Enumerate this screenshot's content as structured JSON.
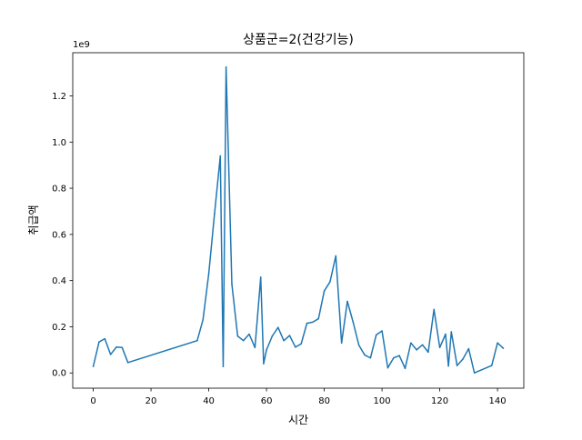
{
  "chart_data": {
    "type": "line",
    "title": "상품군=2(건강기능)",
    "xlabel": "시간",
    "ylabel": "취급액",
    "y_offset_label": "1e9",
    "xlim": [
      -7.1,
      149.1
    ],
    "ylim": [
      -0.066,
      1.387
    ],
    "xticks": [
      0,
      20,
      40,
      60,
      80,
      100,
      120,
      140
    ],
    "yticks": [
      0.0,
      0.2,
      0.4,
      0.6,
      0.8,
      1.0,
      1.2
    ],
    "ytick_labels": [
      "0.0",
      "0.2",
      "0.4",
      "0.6",
      "0.8",
      "1.0",
      "1.2"
    ],
    "grid": false,
    "legend": "none",
    "line_color": "#1f77b4",
    "series": [
      {
        "x": [
          0,
          2,
          4,
          6,
          8,
          10,
          12,
          36,
          38,
          40,
          42,
          44,
          45,
          46,
          48,
          50,
          52,
          54,
          56,
          58,
          59,
          60,
          62,
          64,
          66,
          68,
          70,
          72,
          74,
          76,
          78,
          80,
          82,
          84,
          86,
          88,
          90,
          92,
          94,
          96,
          98,
          100,
          102,
          104,
          106,
          108,
          110,
          112,
          114,
          116,
          118,
          120,
          122,
          123,
          124,
          126,
          128,
          130,
          132,
          138,
          140,
          142
        ],
        "y": [
          0.028,
          0.134,
          0.148,
          0.08,
          0.112,
          0.11,
          0.045,
          0.14,
          0.23,
          0.43,
          0.69,
          0.94,
          0.028,
          1.325,
          0.385,
          0.16,
          0.14,
          0.168,
          0.11,
          0.415,
          0.04,
          0.1,
          0.16,
          0.197,
          0.14,
          0.162,
          0.112,
          0.126,
          0.215,
          0.22,
          0.235,
          0.355,
          0.395,
          0.507,
          0.13,
          0.31,
          0.22,
          0.12,
          0.078,
          0.065,
          0.165,
          0.182,
          0.022,
          0.065,
          0.075,
          0.02,
          0.13,
          0.1,
          0.122,
          0.09,
          0.275,
          0.11,
          0.168,
          0.03,
          0.178,
          0.032,
          0.06,
          0.105,
          0.0,
          0.032,
          0.13,
          0.107
        ]
      }
    ]
  }
}
